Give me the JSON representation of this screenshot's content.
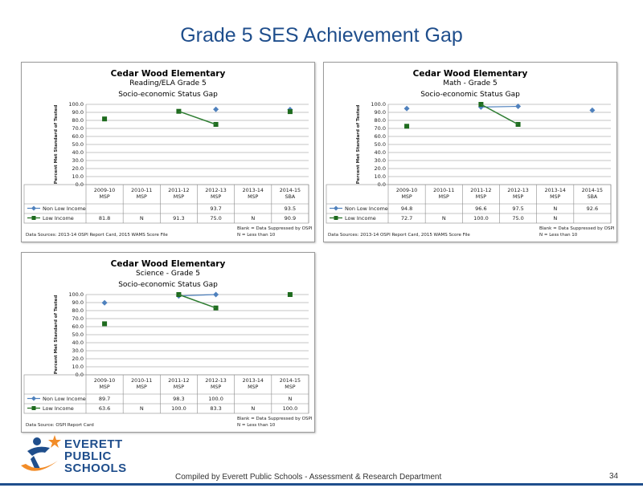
{
  "page": {
    "title": "Grade 5 SES Achievement Gap",
    "footer": "Compiled  by Everett Public Schools - Assessment & Research Department",
    "page_number": "34",
    "logo_lines": [
      "EVERETT",
      "PUBLIC",
      "SCHOOLS"
    ]
  },
  "colors": {
    "non_low": "#4f81bd",
    "low": "#1e6b1e",
    "trend": "#2e7d32",
    "title": "#1f4e8c"
  },
  "chart_data": [
    {
      "type": "line",
      "title": "Cedar Wood Elementary",
      "subtitle": "Reading/ELA   Grade 5",
      "subtitle2": "Socio-economic Status Gap",
      "ylabel": "Percent Met Standard of Tested",
      "ylim": [
        0,
        100
      ],
      "yticks": [
        "100.0",
        "90.0",
        "80.0",
        "70.0",
        "60.0",
        "50.0",
        "40.0",
        "30.0",
        "20.0",
        "10.0",
        "0.0"
      ],
      "categories": [
        [
          "2009-10",
          "MSP"
        ],
        [
          "2010-11",
          "MSP"
        ],
        [
          "2011-12",
          "MSP"
        ],
        [
          "2012-13",
          "MSP"
        ],
        [
          "2013-14",
          "MSP"
        ],
        [
          "2014-15",
          "SBA"
        ]
      ],
      "series": [
        {
          "name": "Non Low Income",
          "values": [
            null,
            null,
            null,
            93.7,
            null,
            93.5
          ],
          "table": [
            "",
            "",
            "",
            "93.7",
            "",
            "93.5"
          ]
        },
        {
          "name": "Low Income",
          "values": [
            81.8,
            null,
            91.3,
            75.0,
            null,
            90.9
          ],
          "table": [
            "81.8",
            "N",
            "91.3",
            "75.0",
            "N",
            "90.9"
          ]
        }
      ],
      "trend": [
        2,
        3
      ],
      "note_left": "Data Sources: 2013-14 OSPI Report Card, 2015 WAMS Score File",
      "note_right": [
        "Blank = Data Suppressed by OSPI",
        "N = Less than 10"
      ]
    },
    {
      "type": "line",
      "title": "Cedar Wood Elementary",
      "subtitle": "Math - Grade 5",
      "subtitle2": "Socio-economic Status Gap",
      "ylabel": "Percent Met Standard of Tested",
      "ylim": [
        0,
        100
      ],
      "yticks": [
        "100.0",
        "90.0",
        "80.0",
        "70.0",
        "60.0",
        "50.0",
        "40.0",
        "30.0",
        "20.0",
        "10.0",
        "0.0"
      ],
      "categories": [
        [
          "2009-10",
          "MSP"
        ],
        [
          "2010-11",
          "MSP"
        ],
        [
          "2011-12",
          "MSP"
        ],
        [
          "2012-13",
          "MSP"
        ],
        [
          "2013-14",
          "MSP"
        ],
        [
          "2014-15",
          "SBA"
        ]
      ],
      "series": [
        {
          "name": "Non Low Income",
          "values": [
            94.8,
            null,
            96.6,
            97.5,
            null,
            92.6
          ],
          "table": [
            "94.8",
            "",
            "96.6",
            "97.5",
            "N",
            "92.6"
          ]
        },
        {
          "name": "Low Income",
          "values": [
            72.7,
            null,
            100.0,
            75.0,
            null,
            null
          ],
          "table": [
            "72.7",
            "N",
            "100.0",
            "75.0",
            "N",
            ""
          ]
        }
      ],
      "trend": [
        2,
        3
      ],
      "note_left": "Data Sources: 2013-14 OSPI Report Card, 2015 WAMS Score File",
      "note_right": [
        "Blank = Data Suppressed by OSPI",
        "N = Less than 10"
      ]
    },
    {
      "type": "line",
      "title": "Cedar Wood Elementary",
      "subtitle": "Science - Grade 5",
      "subtitle2": "Socio-economic Status Gap",
      "ylabel": "Percent Met Standard of Tested",
      "ylim": [
        0,
        100
      ],
      "yticks": [
        "100.0",
        "90.0",
        "80.0",
        "70.0",
        "60.0",
        "50.0",
        "40.0",
        "30.0",
        "20.0",
        "10.0",
        "0.0"
      ],
      "categories": [
        [
          "2009-10",
          "MSP"
        ],
        [
          "2010-11",
          "MSP"
        ],
        [
          "2011-12",
          "MSP"
        ],
        [
          "2012-13",
          "MSP"
        ],
        [
          "2013-14",
          "MSP"
        ],
        [
          "2014-15",
          "MSP"
        ]
      ],
      "series": [
        {
          "name": "Non Low Income",
          "values": [
            89.7,
            null,
            98.3,
            100.0,
            null,
            null
          ],
          "table": [
            "89.7",
            "",
            "98.3",
            "100.0",
            "",
            "N"
          ]
        },
        {
          "name": "Low Income",
          "values": [
            63.6,
            null,
            100.0,
            83.3,
            null,
            100.0
          ],
          "table": [
            "63.6",
            "N",
            "100.0",
            "83.3",
            "N",
            "100.0"
          ]
        }
      ],
      "trend": [
        2,
        3
      ],
      "note_left": "Data Source: OSPI Report Card",
      "note_right": [
        "Blank = Data Suppressed by OSPI",
        "N = Less than 10"
      ]
    }
  ]
}
